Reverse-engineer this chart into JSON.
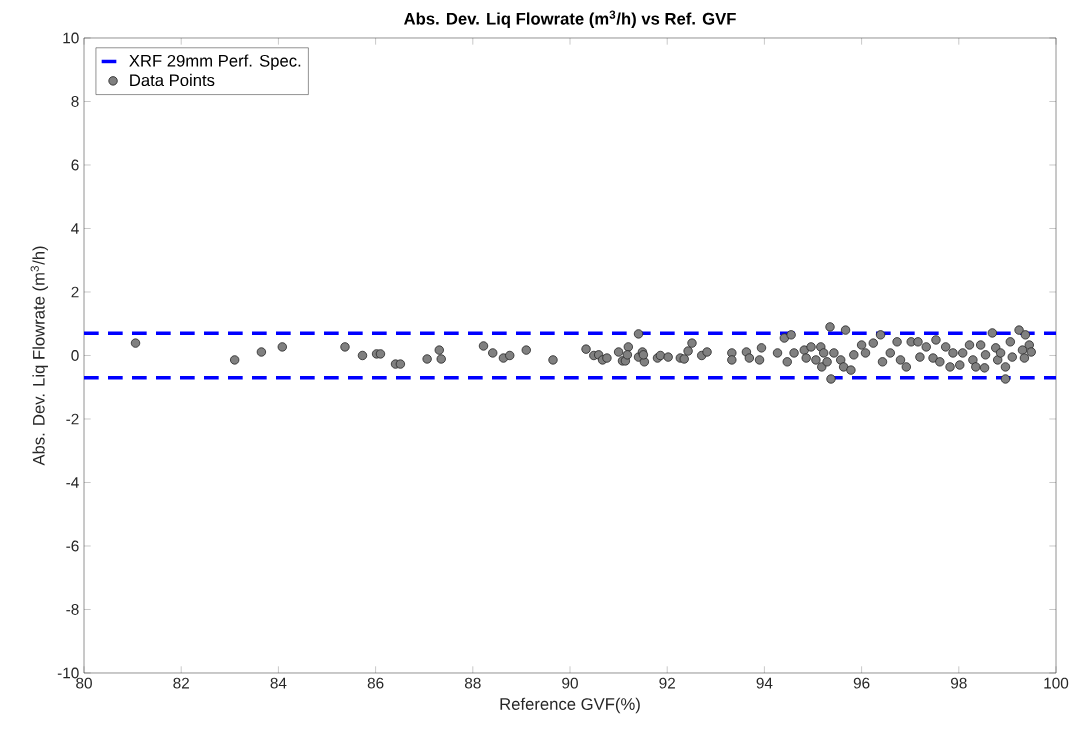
{
  "chart_data": {
    "type": "scatter",
    "title": "Abs. Dev. Liq Flowrate (m$^{3}$/h) vs Ref. GVF",
    "xlabel": "Reference GVF(%)",
    "ylabel": "Abs. Dev. Liq Flowrate (m$^{3}$/h)",
    "xlim": [
      80,
      100
    ],
    "ylim": [
      -10,
      10
    ],
    "xticks": [
      80,
      82,
      84,
      86,
      88,
      90,
      92,
      94,
      96,
      98,
      100
    ],
    "yticks": [
      -10,
      -8,
      -6,
      -4,
      -2,
      0,
      2,
      4,
      6,
      8,
      10
    ],
    "grid": false,
    "legend": "top left",
    "marker": "circle",
    "ref_lines": [
      {
        "axis": "y",
        "value": 0.7,
        "label": "XRF 29mm Perf. Spec.",
        "color": "#0000ff",
        "line_style": "dashed"
      },
      {
        "axis": "y",
        "value": -0.7,
        "color": "#0000ff",
        "line_style": "dashed"
      }
    ],
    "series": [
      {
        "name": "Data Points",
        "color": "#808080",
        "x": [
          81.06,
          83.1,
          83.65,
          84.08,
          85.37,
          85.73,
          86.02,
          86.1,
          86.41,
          86.51,
          87.06,
          87.31,
          87.35,
          88.22,
          88.41,
          88.63,
          88.76,
          89.1,
          89.65,
          90.33,
          90.49,
          90.59,
          90.67,
          90.76,
          91.0,
          91.2,
          91.41,
          91.08,
          91.14,
          91.18,
          91.41,
          91.49,
          91.53,
          91.51,
          91.8,
          91.86,
          92.02,
          92.27,
          92.43,
          92.51,
          92.35,
          92.71,
          92.82,
          93.33,
          93.33,
          93.63,
          93.69,
          93.9,
          93.94,
          94.27,
          94.41,
          94.47,
          94.55,
          94.61,
          94.82,
          94.86,
          94.96,
          95.06,
          95.16,
          95.18,
          95.22,
          95.29,
          95.35,
          95.37,
          95.43,
          95.57,
          95.63,
          95.67,
          95.78,
          95.84,
          96.0,
          96.08,
          96.24,
          96.39,
          96.43,
          96.59,
          96.73,
          96.8,
          96.92,
          97.02,
          97.16,
          97.2,
          97.33,
          97.47,
          97.53,
          97.61,
          97.73,
          97.82,
          97.88,
          98.02,
          98.08,
          98.22,
          98.29,
          98.35,
          98.45,
          98.53,
          98.55,
          98.69,
          98.76,
          98.8,
          98.86,
          98.96,
          98.96,
          99.06,
          99.1,
          99.24,
          99.31,
          99.37,
          99.35,
          99.45,
          99.49
        ],
        "values": [
          0.39,
          -0.14,
          0.11,
          0.27,
          0.27,
          0.0,
          0.05,
          0.05,
          -0.27,
          -0.27,
          -0.11,
          0.17,
          -0.11,
          0.3,
          0.08,
          -0.08,
          0.0,
          0.17,
          -0.14,
          0.2,
          0.0,
          0.02,
          -0.14,
          -0.08,
          0.11,
          0.27,
          0.68,
          -0.17,
          -0.17,
          0.02,
          -0.05,
          0.11,
          -0.2,
          0.02,
          -0.08,
          0.0,
          -0.05,
          -0.08,
          0.14,
          0.39,
          -0.11,
          0.0,
          0.11,
          0.08,
          -0.14,
          0.11,
          -0.08,
          -0.14,
          0.24,
          0.08,
          0.55,
          -0.2,
          0.65,
          0.08,
          0.17,
          -0.08,
          0.27,
          -0.14,
          0.27,
          -0.36,
          0.08,
          -0.2,
          0.9,
          -0.74,
          0.08,
          -0.14,
          -0.36,
          0.8,
          -0.46,
          0.02,
          0.33,
          0.08,
          0.39,
          0.65,
          -0.2,
          0.08,
          0.43,
          -0.14,
          -0.36,
          0.43,
          0.43,
          -0.05,
          0.27,
          -0.08,
          0.49,
          -0.2,
          0.27,
          -0.36,
          0.08,
          -0.3,
          0.08,
          0.33,
          -0.14,
          -0.36,
          0.33,
          -0.39,
          0.02,
          0.71,
          0.24,
          -0.14,
          0.08,
          -0.74,
          -0.36,
          0.43,
          -0.05,
          0.8,
          0.17,
          0.65,
          -0.08,
          0.33,
          0.11
        ]
      }
    ]
  }
}
